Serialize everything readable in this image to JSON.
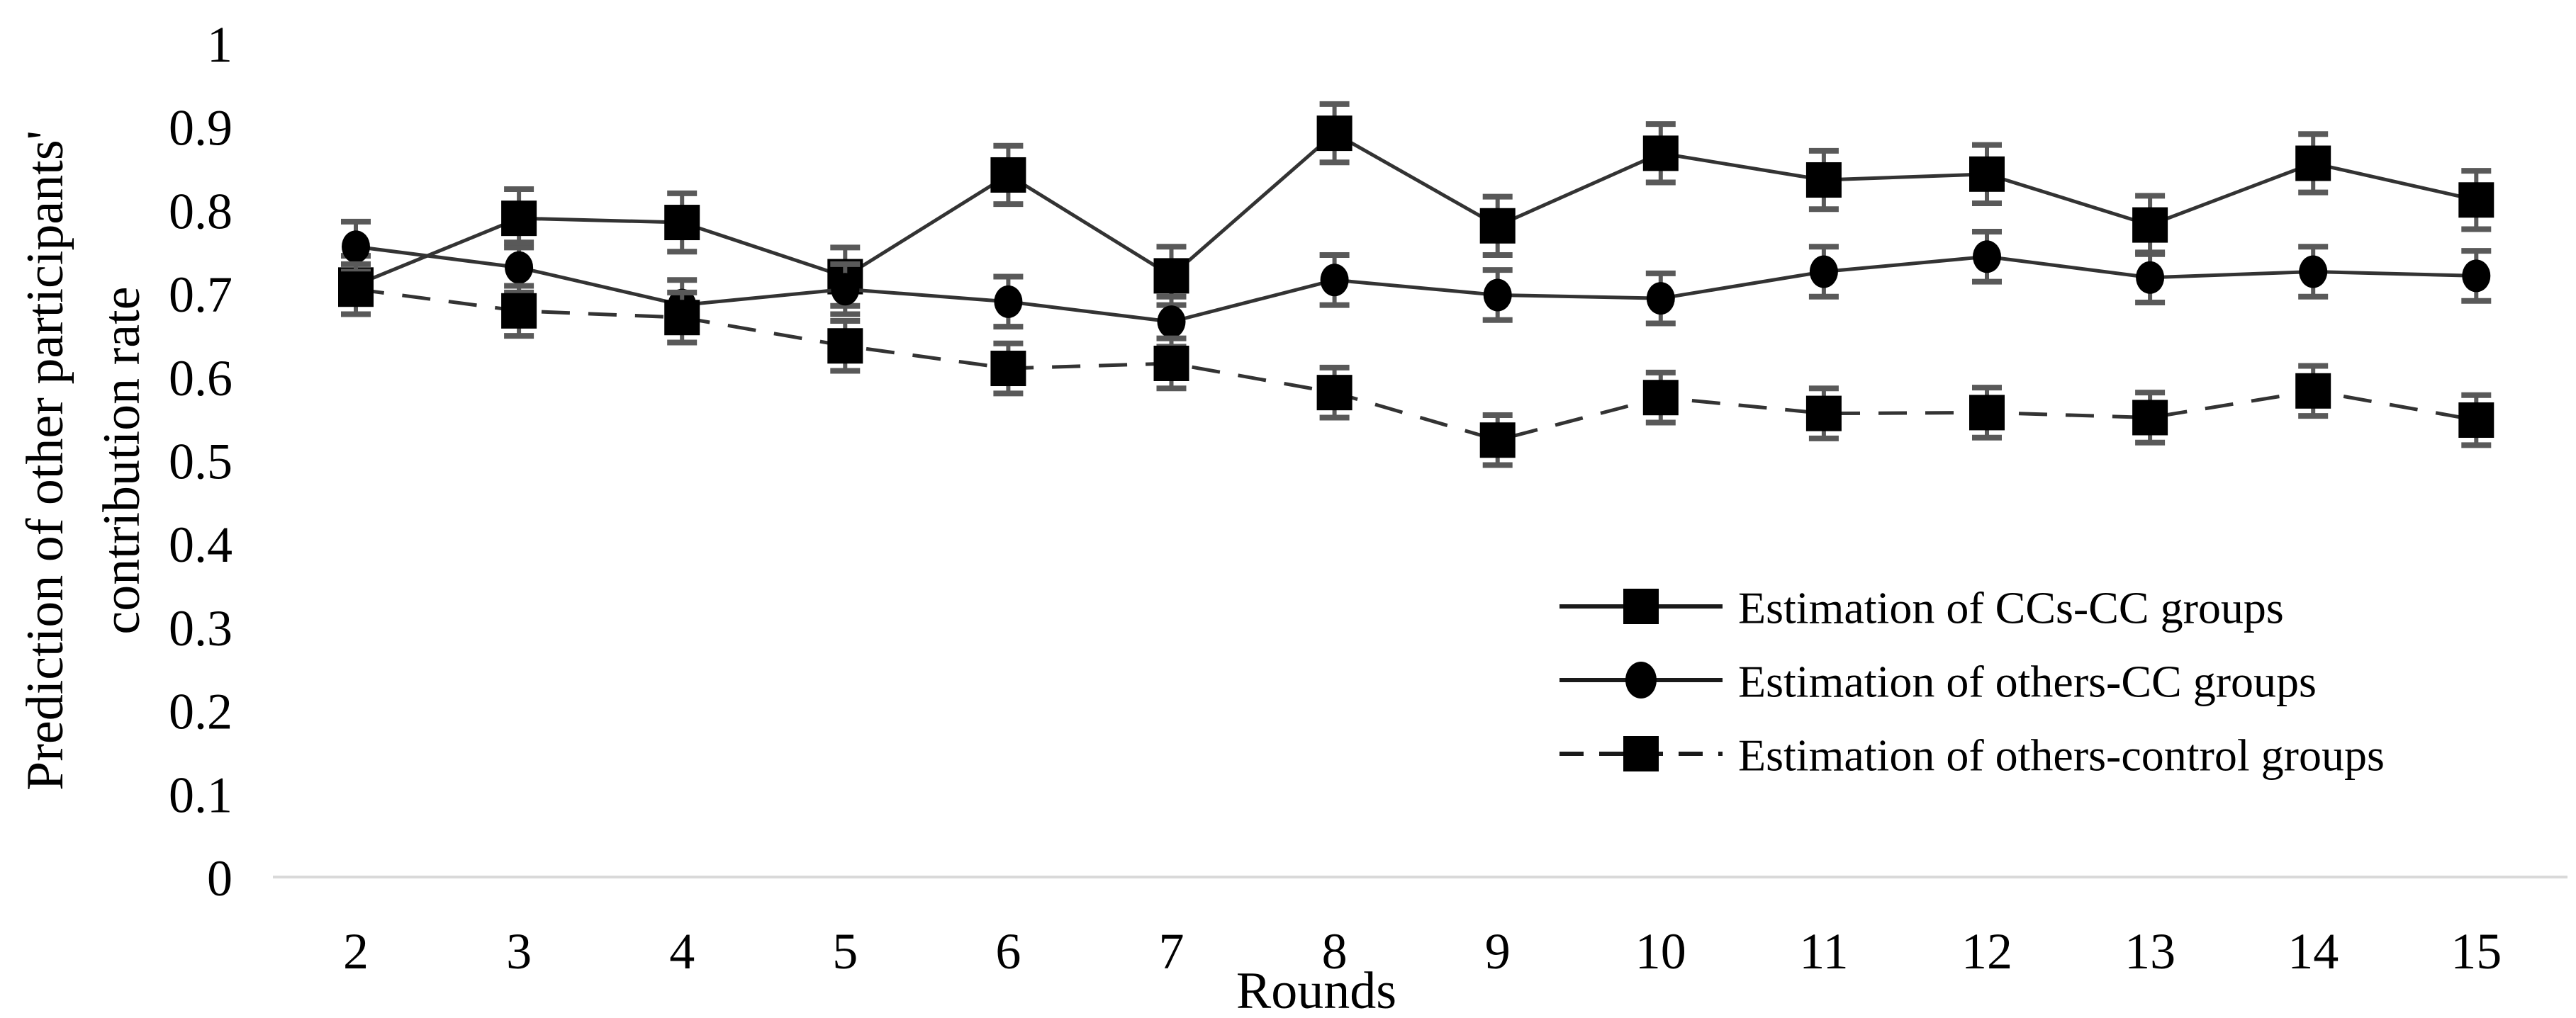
{
  "figure": {
    "background": "#ffffff",
    "axis_line_color": "#d9d9d9",
    "error_bar_color": "#595959",
    "line_color": "#333333",
    "marker_color": "#000000",
    "text_color": "#000000"
  },
  "chart_data": {
    "type": "line",
    "title": "",
    "xlabel": "Rounds",
    "ylabel": "Prediction of other participants' contribution rate",
    "ylabel_lines": [
      "Prediction of other participants'",
      "contribution rate"
    ],
    "x": [
      2,
      3,
      4,
      5,
      6,
      7,
      8,
      9,
      10,
      11,
      12,
      13,
      14,
      15
    ],
    "x_tick_labels": [
      "2",
      "3",
      "4",
      "5",
      "6",
      "7",
      "8",
      "9",
      "10",
      "11",
      "12",
      "13",
      "14",
      "15"
    ],
    "ylim": [
      0,
      1
    ],
    "y_tick_values": [
      0,
      0.1,
      0.2,
      0.3,
      0.4,
      0.5,
      0.6,
      0.7,
      0.8,
      0.9,
      1
    ],
    "y_tick_labels": [
      "0",
      "0.1",
      "0.2",
      "0.3",
      "0.4",
      "0.5",
      "0.6",
      "0.7",
      "0.8",
      "0.9",
      "1"
    ],
    "grid": false,
    "legend_position": "center-right",
    "series": [
      {
        "name": "Estimation of CCs-CC groups",
        "marker": "square",
        "line_style": "solid",
        "error": 0.035,
        "values": [
          0.71,
          0.79,
          0.785,
          0.72,
          0.842,
          0.721,
          0.892,
          0.781,
          0.868,
          0.836,
          0.843,
          0.782,
          0.856,
          0.812
        ]
      },
      {
        "name": "Estimation of others-CC groups",
        "marker": "circle",
        "line_style": "solid",
        "error": 0.03,
        "values": [
          0.756,
          0.731,
          0.686,
          0.705,
          0.69,
          0.666,
          0.716,
          0.698,
          0.694,
          0.726,
          0.744,
          0.719,
          0.726,
          0.721
        ]
      },
      {
        "name": "Estimation of others-control groups",
        "marker": "square",
        "line_style": "dashed",
        "error": 0.03,
        "values": [
          0.705,
          0.679,
          0.671,
          0.637,
          0.61,
          0.616,
          0.581,
          0.524,
          0.575,
          0.556,
          0.557,
          0.551,
          0.583,
          0.548
        ]
      }
    ]
  }
}
